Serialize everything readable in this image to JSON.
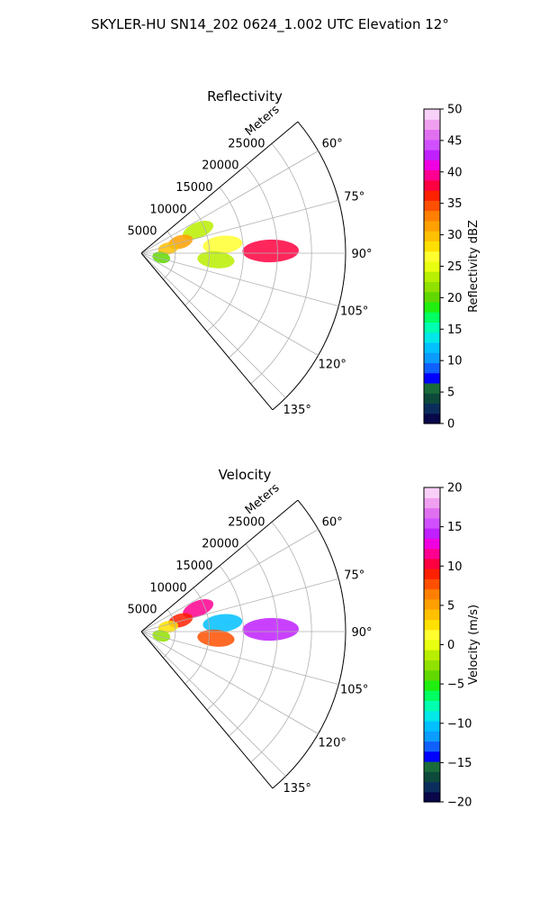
{
  "figure": {
    "suptitle": "SKYLER-HU  SN14_202  0624_1.002 UTC Elevation 12°"
  },
  "chart_data": [
    {
      "type": "heatmap",
      "projection": "polar-sector",
      "title": "Reflectivity",
      "range_label": "Meters",
      "range_ticks": [
        "5000",
        "10000",
        "15000",
        "20000",
        "25000"
      ],
      "azimuth_ticks": [
        "60°",
        "75°",
        "90°",
        "105°",
        "120°",
        "135°"
      ],
      "azimuth_range_deg": [
        50,
        140
      ],
      "range_max_m": 30000,
      "grid": true,
      "colorbar": {
        "label": "Reflectivity dBZ",
        "min": 0,
        "max": 50,
        "ticks": [
          "0",
          "5",
          "10",
          "15",
          "20",
          "25",
          "30",
          "35",
          "40",
          "45",
          "50"
        ],
        "colors": [
          "#08084a",
          "#0b2d5c",
          "#0d4a3c",
          "#1a6b3a",
          "#0000ff",
          "#1060ff",
          "#0a9cff",
          "#00c0ff",
          "#00e8e8",
          "#00ffb0",
          "#00ff60",
          "#20ee10",
          "#60d800",
          "#90e000",
          "#b8ee00",
          "#e8ff10",
          "#ffff30",
          "#ffe000",
          "#ffc000",
          "#ffa000",
          "#ff8000",
          "#ff5000",
          "#ff2000",
          "#ff0040",
          "#ff0090",
          "#f000e0",
          "#c020ff",
          "#d050ff",
          "#e070f0",
          "#f0a0f0",
          "#f8d0f8"
        ]
      },
      "echo_regions": [
        {
          "az": 68,
          "r_m": 9000,
          "dbz": 24
        },
        {
          "az": 74,
          "r_m": 6000,
          "dbz": 32
        },
        {
          "az": 80,
          "r_m": 4000,
          "dbz": 30
        },
        {
          "az": 84,
          "r_m": 12000,
          "dbz": 26
        },
        {
          "az": 89,
          "r_m": 19000,
          "dbz": 38
        },
        {
          "az": 95,
          "r_m": 11000,
          "dbz": 24
        },
        {
          "az": 102,
          "r_m": 3000,
          "dbz": 20
        }
      ]
    },
    {
      "type": "heatmap",
      "projection": "polar-sector",
      "title": "Velocity",
      "range_label": "Meters",
      "range_ticks": [
        "5000",
        "10000",
        "15000",
        "20000",
        "25000"
      ],
      "azimuth_ticks": [
        "60°",
        "75°",
        "90°",
        "105°",
        "120°",
        "135°"
      ],
      "azimuth_range_deg": [
        50,
        140
      ],
      "range_max_m": 30000,
      "grid": true,
      "colorbar": {
        "label": "Velocity (m/s)",
        "min": -20,
        "max": 20,
        "ticks": [
          "−20",
          "−15",
          "−10",
          "−5",
          "0",
          "5",
          "10",
          "15",
          "20"
        ],
        "colors": [
          "#08084a",
          "#0b2d5c",
          "#0d4a3c",
          "#1a6b3a",
          "#0000ff",
          "#1060ff",
          "#0a9cff",
          "#00c0ff",
          "#00e8e8",
          "#00ffb0",
          "#00ff60",
          "#20ee10",
          "#60d800",
          "#90e000",
          "#b8ee00",
          "#e8ff10",
          "#ffff30",
          "#ffe000",
          "#ffc000",
          "#ffa000",
          "#ff8000",
          "#ff5000",
          "#ff2000",
          "#ff0040",
          "#ff0090",
          "#f000e0",
          "#c020ff",
          "#d050ff",
          "#e070f0",
          "#f0a0f0",
          "#f8d0f8"
        ]
      },
      "echo_regions": [
        {
          "az": 68,
          "r_m": 9000,
          "vel": 12
        },
        {
          "az": 74,
          "r_m": 6000,
          "vel": 9
        },
        {
          "az": 80,
          "r_m": 4000,
          "vel": 2
        },
        {
          "az": 84,
          "r_m": 12000,
          "vel": -10
        },
        {
          "az": 89,
          "r_m": 19000,
          "vel": 14
        },
        {
          "az": 95,
          "r_m": 11000,
          "vel": 8
        },
        {
          "az": 102,
          "r_m": 3000,
          "vel": -2
        }
      ]
    }
  ]
}
